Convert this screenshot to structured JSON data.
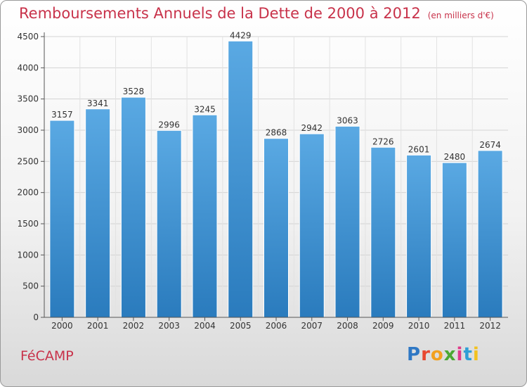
{
  "header": {
    "title": "Remboursements Annuels de la Dette de 2000 à 2012",
    "subtitle": "(en milliers d'€)"
  },
  "footer": {
    "city": "FéCAMP",
    "logo": {
      "text": "Proxiti",
      "colors": [
        "#2f78c4",
        "#e8472f",
        "#f2a11f",
        "#4aa832",
        "#e03a8a",
        "#2f9fd6",
        "#f2c21f"
      ]
    }
  },
  "colors": {
    "bar_top": "#5aa9e3",
    "bar_bottom": "#2a7bbd",
    "accent": "#c8324a"
  },
  "chart_data": {
    "type": "bar",
    "categories": [
      "2000",
      "2001",
      "2002",
      "2003",
      "2004",
      "2005",
      "2006",
      "2007",
      "2008",
      "2009",
      "2010",
      "2011",
      "2012"
    ],
    "values": [
      3157,
      3341,
      3528,
      2996,
      3245,
      4429,
      2868,
      2942,
      3063,
      2726,
      2601,
      2480,
      2674
    ],
    "ylim": [
      0,
      4500
    ],
    "yticks": [
      0,
      500,
      1000,
      1500,
      2000,
      2500,
      3000,
      3500,
      4000,
      4500
    ],
    "grid": true,
    "data_labels": true
  }
}
